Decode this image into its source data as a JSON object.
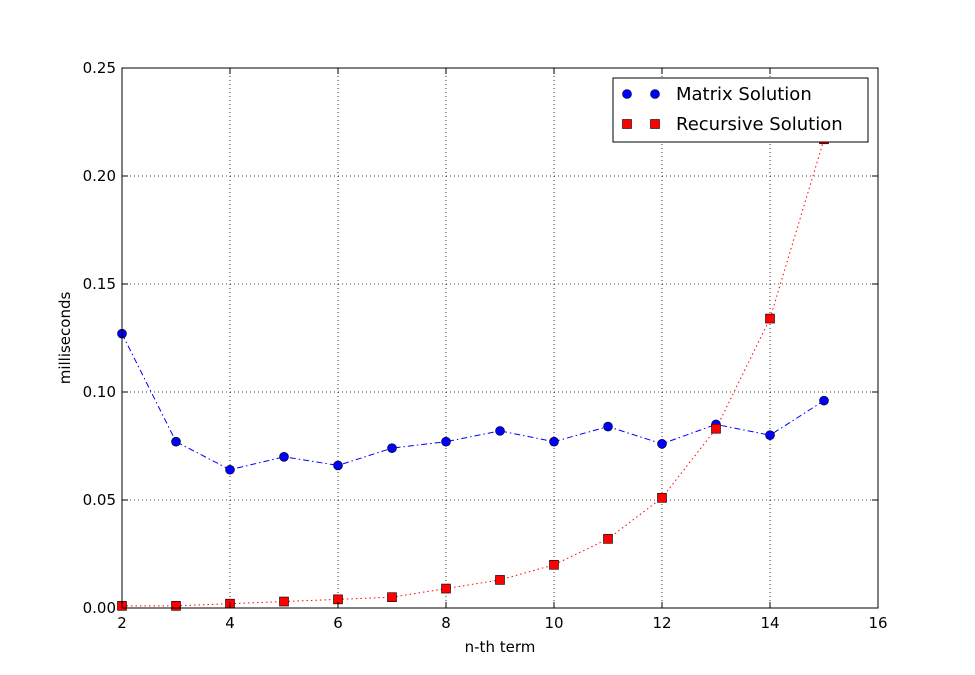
{
  "chart_data": {
    "type": "line",
    "title": "",
    "xlabel": "n-th term",
    "ylabel": "milliseconds",
    "xlim": [
      2,
      16
    ],
    "ylim": [
      0.0,
      0.25
    ],
    "x_ticks": [
      "2",
      "4",
      "6",
      "8",
      "10",
      "12",
      "14",
      "16"
    ],
    "y_ticks": [
      "0.00",
      "0.05",
      "0.10",
      "0.15",
      "0.20",
      "0.25"
    ],
    "grid": true,
    "legend_position": "top-right",
    "series": [
      {
        "name": "Matrix Solution",
        "color": "#0000ff",
        "marker": "circle",
        "linestyle": "dash-dot",
        "x": [
          2,
          3,
          4,
          5,
          6,
          7,
          8,
          9,
          10,
          11,
          12,
          13,
          14,
          15
        ],
        "y": [
          0.127,
          0.077,
          0.064,
          0.07,
          0.066,
          0.074,
          0.077,
          0.082,
          0.077,
          0.084,
          0.076,
          0.085,
          0.08,
          0.096
        ]
      },
      {
        "name": "Recursive Solution",
        "color": "#ff0000",
        "marker": "square",
        "linestyle": "dotted",
        "x": [
          2,
          3,
          4,
          5,
          6,
          7,
          8,
          9,
          10,
          11,
          12,
          13,
          14,
          15
        ],
        "y": [
          0.001,
          0.001,
          0.002,
          0.003,
          0.004,
          0.005,
          0.009,
          0.013,
          0.02,
          0.032,
          0.051,
          0.083,
          0.134,
          0.217
        ]
      }
    ]
  }
}
